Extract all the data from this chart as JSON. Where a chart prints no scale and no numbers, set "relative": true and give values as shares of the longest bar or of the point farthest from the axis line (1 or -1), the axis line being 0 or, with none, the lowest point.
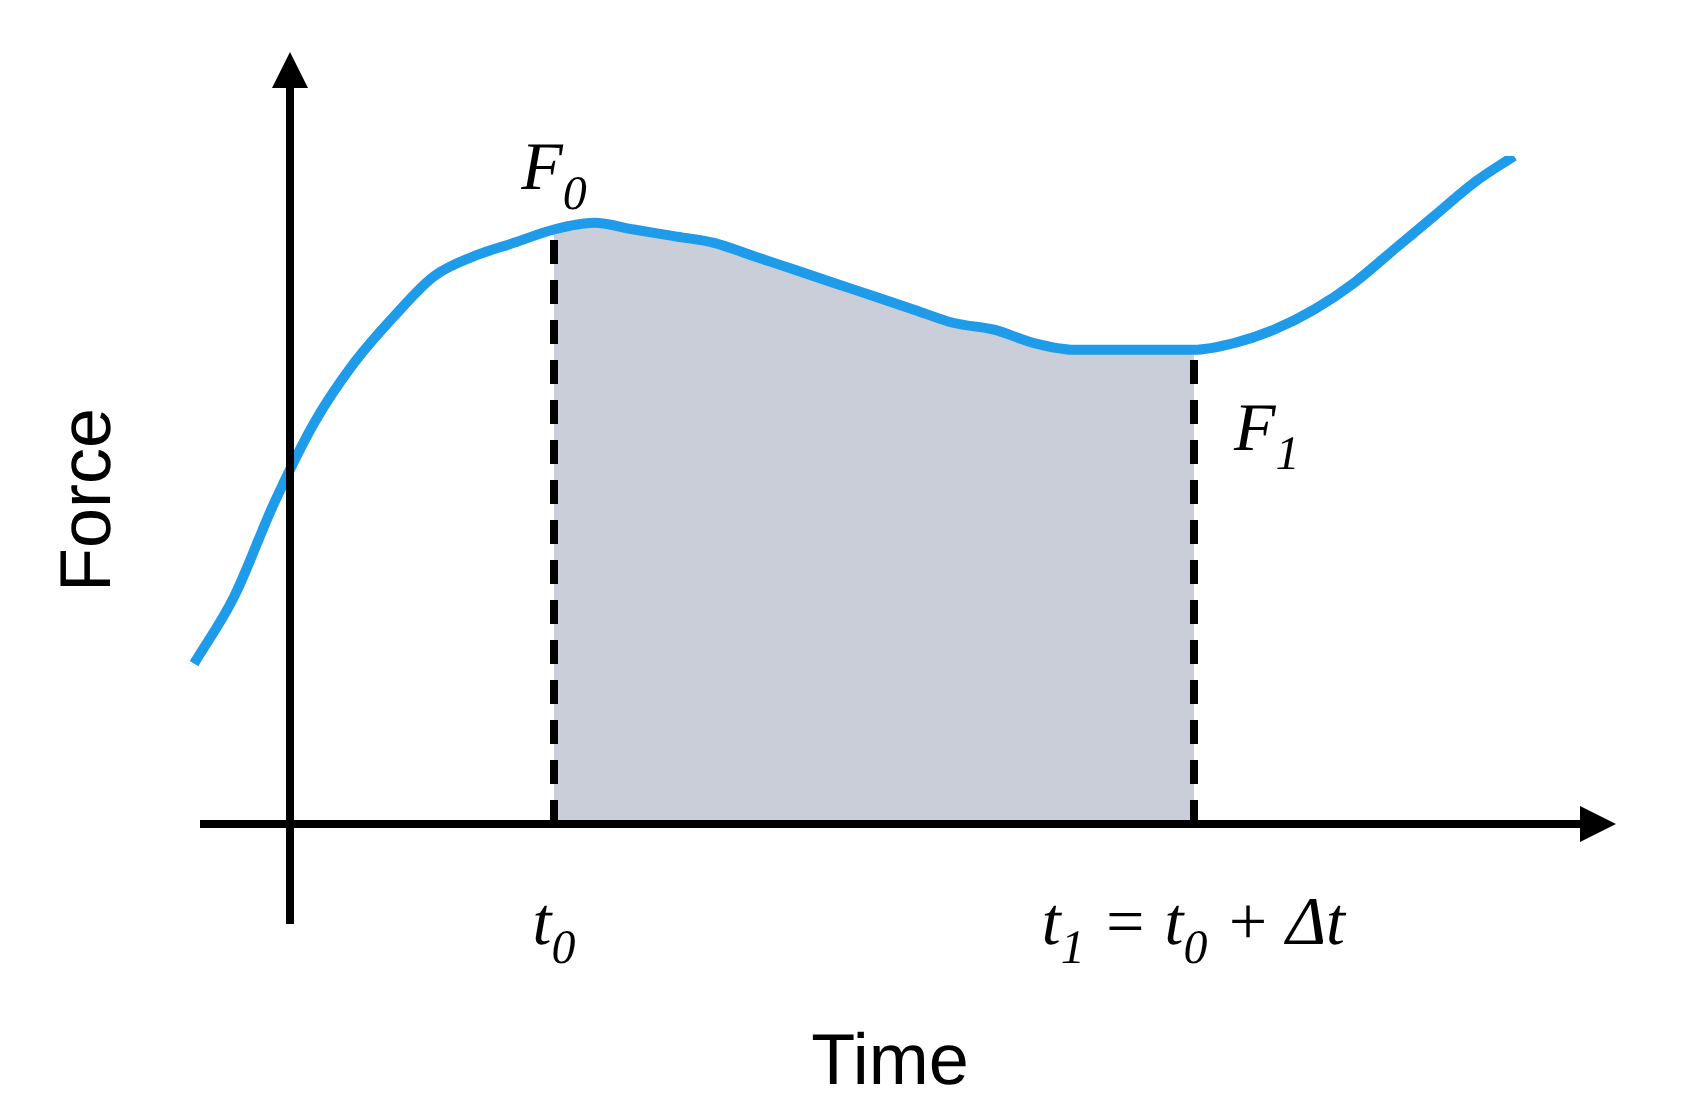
{
  "chart_data": {
    "type": "line",
    "relative": true,
    "xlabel": "Time",
    "ylabel": "Force",
    "legend": false,
    "marker": "none",
    "categories": [
      null,
      null,
      null,
      null,
      null,
      null,
      null,
      null,
      null,
      "t$_{0}$",
      null,
      null,
      null,
      null,
      null,
      null,
      null,
      null,
      null,
      null,
      null,
      null,
      null,
      null,
      null,
      "t$_{1}$ = t$_{0}$ + Δt",
      null,
      null,
      null,
      null,
      null,
      null,
      null,
      null
    ],
    "series": [
      {
        "type": "line",
        "color": "#1e9be9",
        "values": [
          0.24,
          0.34,
          0.48,
          0.6,
          0.69,
          0.76,
          0.82,
          0.85,
          0.87,
          0.89,
          0.9,
          0.89,
          0.88,
          0.87,
          0.85,
          0.83,
          0.81,
          0.79,
          0.77,
          0.75,
          0.74,
          0.72,
          0.71,
          0.71,
          0.71,
          0.71,
          0.72,
          0.74,
          0.77,
          0.81,
          0.86,
          0.91,
          0.96,
          1
        ]
      },
      {
        "type": "area",
        "color": "#c9ced8",
        "line_style": "dashed",
        "values": [
          null,
          null,
          null,
          null,
          null,
          null,
          null,
          null,
          null,
          0.89,
          0.9,
          0.89,
          0.88,
          0.87,
          0.85,
          0.83,
          0.81,
          0.79,
          0.77,
          0.75,
          0.74,
          0.72,
          0.71,
          0.71,
          0.71,
          0.71,
          null,
          null,
          null,
          null,
          null,
          null,
          null,
          null
        ]
      }
    ],
    "annotations": [
      {
        "text": "F$_{0}$",
        "x": "t$_{0}$",
        "y": 0.89
      },
      {
        "text": "F$_{1}$",
        "x": "t$_{1}$ = t$_{0}$ + Δt",
        "y": 0.71
      }
    ]
  }
}
